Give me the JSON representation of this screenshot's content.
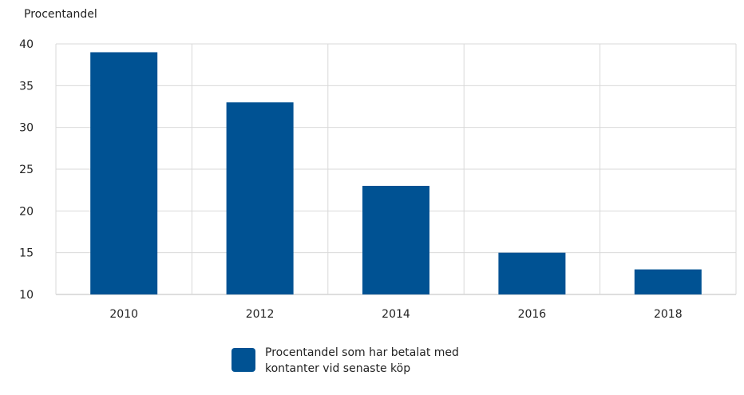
{
  "chart_data": {
    "type": "bar",
    "ylabel": "Procentandel",
    "xlabel": "",
    "categories": [
      "2010",
      "2012",
      "2014",
      "2016",
      "2018"
    ],
    "series": [
      {
        "name": "Procentandel som har betalat med kontanter vid senaste köp",
        "values": [
          39,
          33,
          23,
          15,
          13
        ]
      }
    ],
    "ylim": [
      10,
      40
    ],
    "yticks": [
      10,
      15,
      20,
      25,
      30,
      35,
      40
    ],
    "grid": true,
    "legend_position": "bottom",
    "colors": {
      "bar": "#005293",
      "grid": "#d9d9d9",
      "axis": "#bdbdbd"
    }
  }
}
